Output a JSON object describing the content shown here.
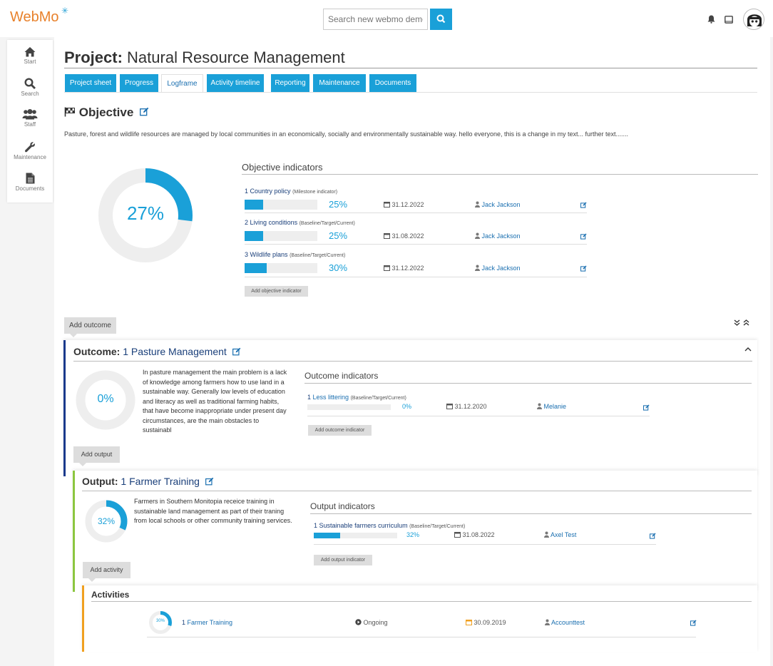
{
  "app": {
    "logo": "WebMo",
    "logo_star": "✳"
  },
  "search": {
    "placeholder": "Search new webmo demo"
  },
  "sidebar": {
    "items": [
      {
        "label": "Start",
        "icon": "home-icon"
      },
      {
        "label": "Search",
        "icon": "search-icon"
      },
      {
        "label": "Staff",
        "icon": "users-icon"
      },
      {
        "label": "Maintenance",
        "icon": "wrench-icon"
      },
      {
        "label": "Documents",
        "icon": "document-icon"
      }
    ]
  },
  "project": {
    "prefix": "Project:",
    "name": "Natural Resource Management"
  },
  "tabs": [
    {
      "label": "Project sheet",
      "active": false
    },
    {
      "label": "Progress",
      "active": false
    },
    {
      "label": "Logframe",
      "active": true
    },
    {
      "label": "Activity timeline",
      "active": false
    },
    {
      "label": "Reporting",
      "active": false
    },
    {
      "label": "Maintenance",
      "active": false
    },
    {
      "label": "Documents",
      "active": false
    }
  ],
  "objective": {
    "heading": "Objective",
    "text": "Pasture, forest and wildlife resources are managed by local communities in an economically, socially and environmentally sustainable way. hello everyone, this is a change in my text... further text.......",
    "progress": 27,
    "progress_label": "27%",
    "indicators_title": "Objective indicators",
    "indicators": [
      {
        "num": "1",
        "name": "Country policy",
        "kind": "(Milestone indicator)",
        "pct": 25,
        "pct_label": "25%",
        "date": "31.12.2022",
        "person": "Jack Jackson"
      },
      {
        "num": "2",
        "name": "Living conditions",
        "kind": "(Baseline/Target/Current)",
        "pct": 25,
        "pct_label": "25%",
        "date": "31.08.2022",
        "person": "Jack Jackson"
      },
      {
        "num": "3",
        "name": "Wildlife plans",
        "kind": "(Baseline/Target/Current)",
        "pct": 30,
        "pct_label": "30%",
        "date": "31.12.2022",
        "person": "Jack Jackson"
      }
    ],
    "add_indicator": "Add objective indicator"
  },
  "add_outcome": "Add outcome",
  "outcome": {
    "prefix": "Outcome:",
    "number": "1",
    "name": "Pasture Management",
    "progress": 0,
    "progress_label": "0%",
    "text": "In pasture management the main problem is a lack of knowledge among farmers how to use land in a sustainable way. Generally low levels of education and literacy as well as traditional farming habits, that have become inappropriate under present day circumstances, are the main obstacles to sustainabl",
    "indicators_title": "Outcome indicators",
    "indicator": {
      "num": "1",
      "name": "Less littering",
      "kind": "(Baseline/Target/Current)",
      "pct": 0,
      "pct_label": "0%",
      "date": "31.12.2020",
      "person": "Melanie"
    },
    "add_indicator": "Add outcome indicator",
    "add_output": "Add output",
    "accent": "#1a3a8c"
  },
  "output": {
    "prefix": "Output:",
    "number": "1",
    "name": "Farmer Training",
    "progress": 32,
    "progress_label": "32%",
    "text": "Farmers in Southern Monitopia receice training in sustainable land management as part of their traning from local schools or other community training services.",
    "indicators_title": "Output indicators",
    "indicator": {
      "num": "1",
      "name": "Sustainable farmers curriculum",
      "kind": "(Baseline/Target/Current)",
      "pct": 32,
      "pct_label": "32%",
      "date": "31.08.2022",
      "person": "Axel Test"
    },
    "add_indicator": "Add output indicator",
    "add_activity": "Add activity",
    "accent": "#8cc63f"
  },
  "activities": {
    "heading": "Activities",
    "accent": "#f0a020",
    "items": [
      {
        "progress": 30,
        "progress_label": "30%",
        "num": "1",
        "name": "Farmer Training",
        "status": "Ongoing",
        "date": "30.09.2019",
        "person": "Accounttest"
      }
    ]
  },
  "colors": {
    "accent": "#1aa0d8",
    "brand": "#e8812b",
    "ring_bg": "#eeeeee"
  }
}
